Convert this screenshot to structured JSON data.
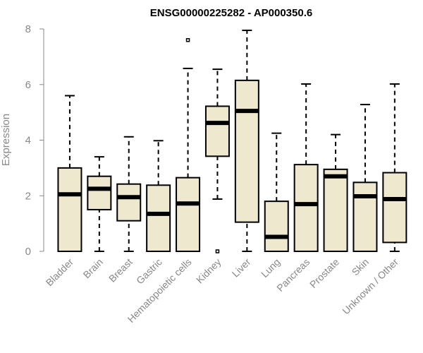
{
  "chart_data": {
    "type": "box",
    "title": "ENSG00000225282 - AP000350.6",
    "xlabel": "",
    "ylabel": "Expression",
    "ylim": [
      0,
      8
    ],
    "yticks": [
      0,
      2,
      4,
      6,
      8
    ],
    "box_fill": "#EEE8CF",
    "categories": [
      "Bladder",
      "Brain",
      "Breast",
      "Gastric",
      "Hematopoietic cells",
      "Kidney",
      "Liver",
      "Lung",
      "Pancreas",
      "Prostate",
      "Skin",
      "Unknown / Other"
    ],
    "boxes": [
      {
        "min": 0.0,
        "q1": 0.0,
        "median": 2.05,
        "q3": 3.0,
        "max": 5.6,
        "outliers": []
      },
      {
        "min": 0.0,
        "q1": 1.5,
        "median": 2.25,
        "q3": 2.7,
        "max": 3.4,
        "outliers": []
      },
      {
        "min": 0.0,
        "q1": 1.1,
        "median": 1.95,
        "q3": 2.42,
        "max": 4.12,
        "outliers": []
      },
      {
        "min": 0.0,
        "q1": 0.0,
        "median": 1.35,
        "q3": 2.38,
        "max": 3.98,
        "outliers": []
      },
      {
        "min": 0.0,
        "q1": 0.0,
        "median": 1.72,
        "q3": 2.65,
        "max": 6.58,
        "outliers": [
          7.6
        ]
      },
      {
        "min": 1.88,
        "q1": 3.42,
        "median": 4.62,
        "q3": 5.22,
        "max": 6.55,
        "outliers": [
          0.0
        ]
      },
      {
        "min": 0.0,
        "q1": 1.05,
        "median": 5.05,
        "q3": 6.15,
        "max": 7.95,
        "outliers": []
      },
      {
        "min": 0.0,
        "q1": 0.0,
        "median": 0.52,
        "q3": 1.8,
        "max": 4.25,
        "outliers": []
      },
      {
        "min": 0.0,
        "q1": 0.0,
        "median": 1.7,
        "q3": 3.12,
        "max": 6.02,
        "outliers": []
      },
      {
        "min": 0.0,
        "q1": 0.0,
        "median": 2.7,
        "q3": 2.95,
        "max": 4.2,
        "outliers": []
      },
      {
        "min": 0.0,
        "q1": 0.0,
        "median": 1.98,
        "q3": 2.48,
        "max": 5.28,
        "outliers": []
      },
      {
        "min": 0.0,
        "q1": 0.32,
        "median": 1.88,
        "q3": 2.83,
        "max": 6.02,
        "outliers": []
      }
    ]
  }
}
